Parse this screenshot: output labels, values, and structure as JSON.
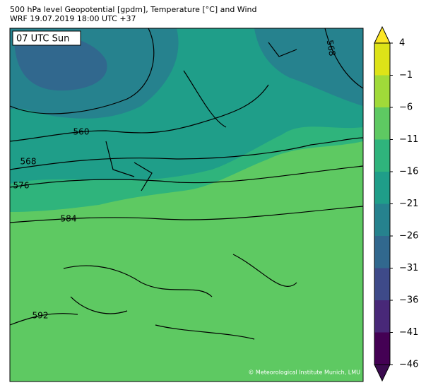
{
  "header": {
    "title_line1": "500 hPa level Geopotential [gpdm], Temperature [°C] and Wind",
    "title_line2": "WRF 19.07.2019 18:00 UTC +37"
  },
  "map": {
    "time_label": "07 UTC Sun",
    "contour_labels": [
      "560",
      "568",
      "576",
      "584",
      "592",
      "568"
    ],
    "copyright": "© Meteorological Institute Munich, LMU"
  },
  "colorbar": {
    "ticks": [
      4,
      {
        "value": -1,
        "label": "−1"
      },
      {
        "value": -6,
        "label": "−6"
      },
      {
        "value": -11,
        "label": "−11"
      },
      {
        "value": -16,
        "label": "−16"
      },
      {
        "value": -21,
        "label": "−21"
      },
      {
        "value": -26,
        "label": "−26"
      },
      {
        "value": -31,
        "label": "−31"
      },
      {
        "value": -36,
        "label": "−36"
      },
      {
        "value": -41,
        "label": "−41"
      },
      {
        "value": -46,
        "label": "−46"
      }
    ],
    "lim": [
      -46,
      4
    ],
    "colors": [
      "#dde318",
      "#a0da39",
      "#5ec962",
      "#2fb47c",
      "#1f9e89",
      "#26828e",
      "#31688e",
      "#3e4a89",
      "#482878",
      "#440154"
    ],
    "extend_colors": [
      "#fde725",
      "#3b0a4f"
    ]
  }
}
